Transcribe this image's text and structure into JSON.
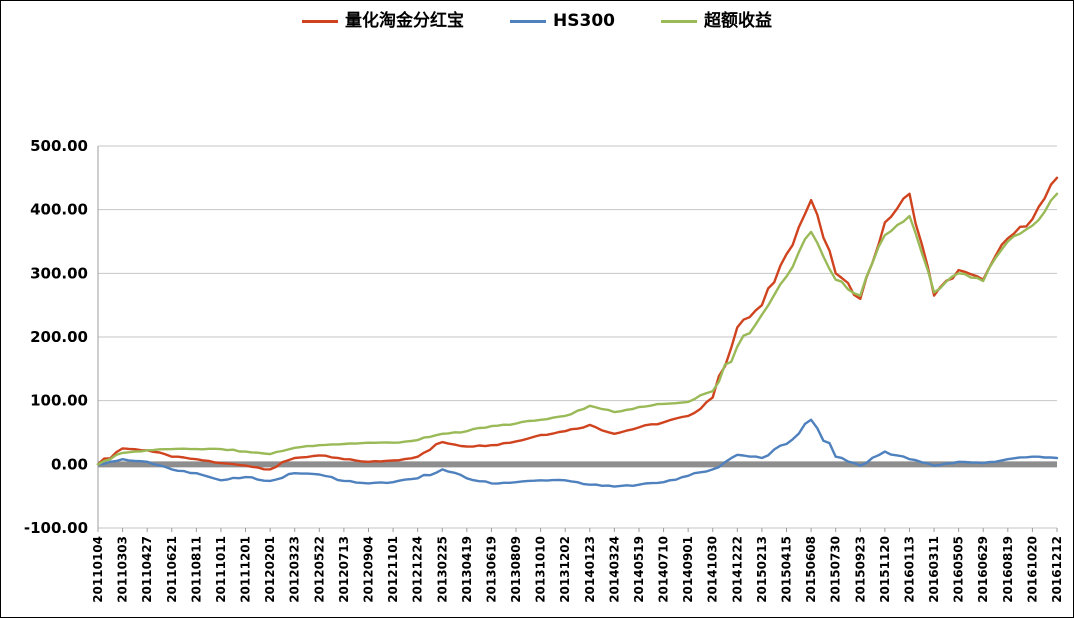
{
  "chart_data": {
    "type": "line",
    "title": "",
    "xlabel": "",
    "ylabel": "",
    "grid": "horizontal",
    "legend_position": "top",
    "ylim": [
      -100,
      500
    ],
    "ytick_step": 100,
    "ytick_labels": [
      "500.00",
      "400.00",
      "300.00",
      "200.00",
      "100.00",
      "0.00",
      "-100.00"
    ],
    "zero_axis": {
      "color": "#8e8e8e",
      "width": 6
    },
    "gridline_color": "#c6c6c6",
    "axis_color": "#9c9c9c",
    "categories": [
      "20110104",
      "20110303",
      "20110427",
      "20110621",
      "20110811",
      "20111011",
      "20111201",
      "20120201",
      "20120323",
      "20120522",
      "20120713",
      "20120904",
      "20121101",
      "20121224",
      "20130225",
      "20130419",
      "20130619",
      "20130809",
      "20131010",
      "20131202",
      "20140123",
      "20140324",
      "20140519",
      "20140710",
      "20140901",
      "20141030",
      "20141222",
      "20150213",
      "20150415",
      "20150608",
      "20150730",
      "20150923",
      "20151120",
      "20160113",
      "20160311",
      "20160505",
      "20160629",
      "20160819",
      "20161020",
      "20161212"
    ],
    "series": [
      {
        "key": "quant-dividend",
        "name": "量化淘金分红宝",
        "color": "#d0431f",
        "values": [
          0,
          25,
          22,
          12,
          8,
          2,
          -2,
          -8,
          10,
          14,
          8,
          4,
          6,
          12,
          35,
          28,
          30,
          36,
          46,
          52,
          62,
          48,
          58,
          66,
          76,
          105,
          215,
          250,
          330,
          415,
          300,
          260,
          380,
          425,
          265,
          305,
          290,
          355,
          385,
          450
        ]
      },
      {
        "key": "hs300",
        "name": "HS300",
        "color": "#4e81bd",
        "values": [
          0,
          8,
          4,
          -8,
          -14,
          -25,
          -20,
          -26,
          -14,
          -16,
          -26,
          -30,
          -28,
          -22,
          -8,
          -22,
          -30,
          -28,
          -25,
          -25,
          -32,
          -35,
          -32,
          -28,
          -18,
          -8,
          15,
          10,
          32,
          70,
          12,
          -2,
          20,
          8,
          -2,
          4,
          2,
          8,
          12,
          10
        ]
      },
      {
        "key": "excess-return",
        "name": "超额收益",
        "color": "#9aba58",
        "values": [
          0,
          18,
          22,
          24,
          24,
          24,
          20,
          16,
          26,
          30,
          32,
          34,
          34,
          38,
          48,
          52,
          60,
          64,
          70,
          76,
          92,
          82,
          90,
          95,
          98,
          115,
          185,
          235,
          295,
          365,
          290,
          265,
          360,
          390,
          270,
          300,
          288,
          350,
          375,
          425
        ]
      }
    ]
  }
}
